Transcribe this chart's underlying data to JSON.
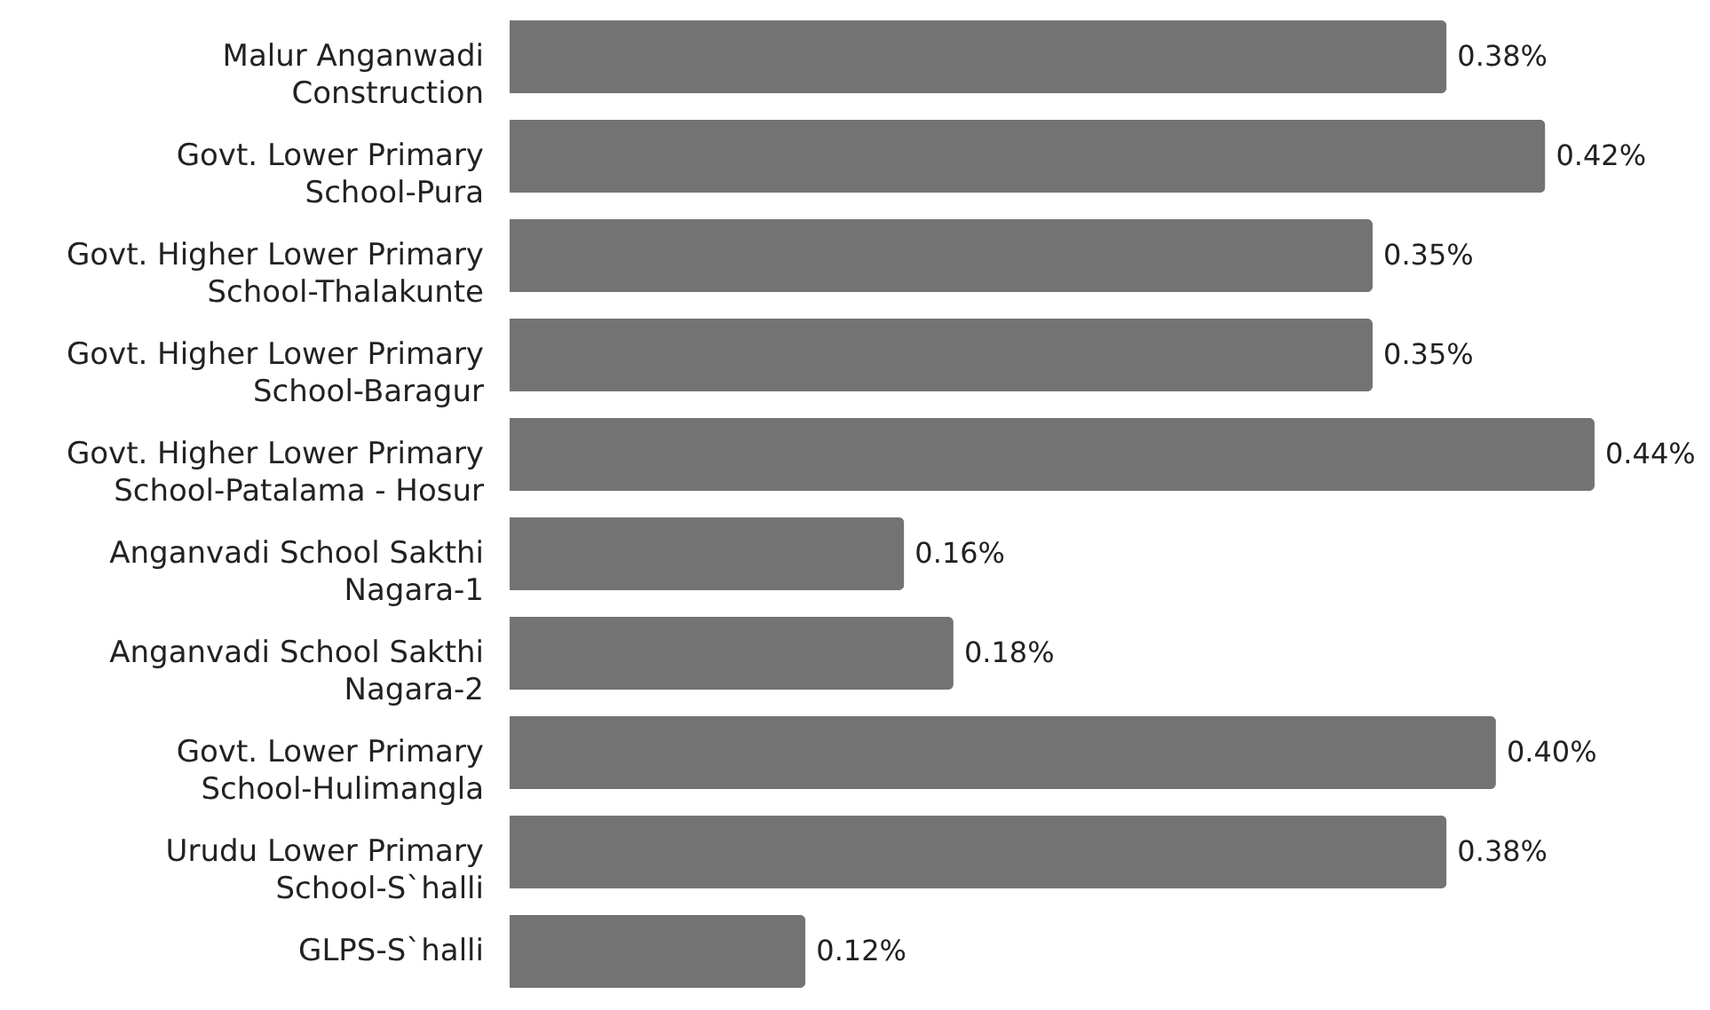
{
  "chart_data": {
    "type": "bar",
    "orientation": "horizontal",
    "categories": [
      "Malur Anganwadi Construction",
      "Govt. Lower Primary School-Pura",
      "Govt. Higher Lower Primary School-Thalakunte",
      "Govt. Higher Lower Primary School-Baragur",
      "Govt. Higher Lower Primary School-Patalama - Hosur",
      "Anganvadi School Sakthi Nagara-1",
      "Anganvadi School Sakthi Nagara-2",
      "Govt. Lower Primary School-Hulimangla",
      "Urudu Lower Primary School-S`halli",
      "GLPS-S`halli"
    ],
    "values": [
      0.38,
      0.42,
      0.35,
      0.35,
      0.44,
      0.16,
      0.18,
      0.4,
      0.38,
      0.12
    ],
    "value_labels": [
      "0.38%",
      "0.42%",
      "0.35%",
      "0.35%",
      "0.44%",
      "0.16%",
      "0.18%",
      "0.40%",
      "0.38%",
      "0.12%"
    ],
    "color": "#737373"
  }
}
